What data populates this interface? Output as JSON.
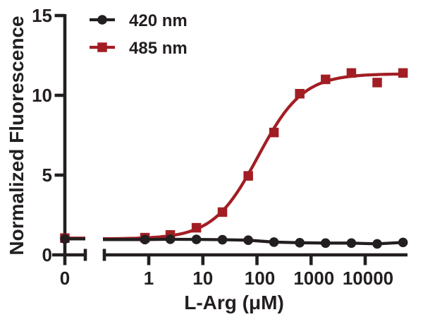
{
  "figure": {
    "background": "#FFFFFF",
    "axis_color": "#231F20",
    "accent_red": "#A21E24"
  },
  "legend": {
    "position": "top-left-inside",
    "items": [
      {
        "label": "420 nm",
        "marker": "circle-marker",
        "color": "#231F20"
      },
      {
        "label": "485 nm",
        "marker": "square-marker",
        "color": "#A21E24"
      }
    ]
  },
  "chart_data": {
    "type": "scatter",
    "title": "",
    "xlabel": "L-Arg (μM)",
    "ylabel": "Normalized Fluorescence",
    "x_scale": "log10 with broken zero segment",
    "x_tick_labels": [
      "0",
      "1",
      "10",
      "100",
      "1000",
      "10000"
    ],
    "x_tick_values": [
      0,
      1,
      10,
      100,
      1000,
      10000
    ],
    "y_tick_labels": [
      "0",
      "5",
      "10",
      "15"
    ],
    "y_tick_values": [
      0,
      5,
      10,
      15
    ],
    "ylim": [
      0,
      15
    ],
    "xlim_log_segment": [
      0.16,
      63000
    ],
    "grid": false,
    "x": [
      0,
      0.85,
      2.5,
      7.6,
      23,
      69,
      206,
      617,
      1852,
      5556,
      16667,
      50000
    ],
    "series": [
      {
        "name": "420 nm",
        "marker": "circle",
        "color": "#231F20",
        "values": [
          1.0,
          0.96,
          0.98,
          0.97,
          0.95,
          0.92,
          0.8,
          0.76,
          0.74,
          0.74,
          0.69,
          0.78
        ]
      },
      {
        "name": "485 nm",
        "marker": "square",
        "color": "#A21E24",
        "values": [
          1.05,
          1.08,
          1.25,
          1.7,
          2.68,
          4.95,
          7.67,
          10.1,
          11.0,
          11.4,
          10.8,
          11.4
        ]
      }
    ],
    "fit_485": {
      "model": "4PL sigmoid",
      "bottom": 1.0,
      "top": 11.35,
      "ec50_uM": 105,
      "hill": 1.05
    }
  }
}
